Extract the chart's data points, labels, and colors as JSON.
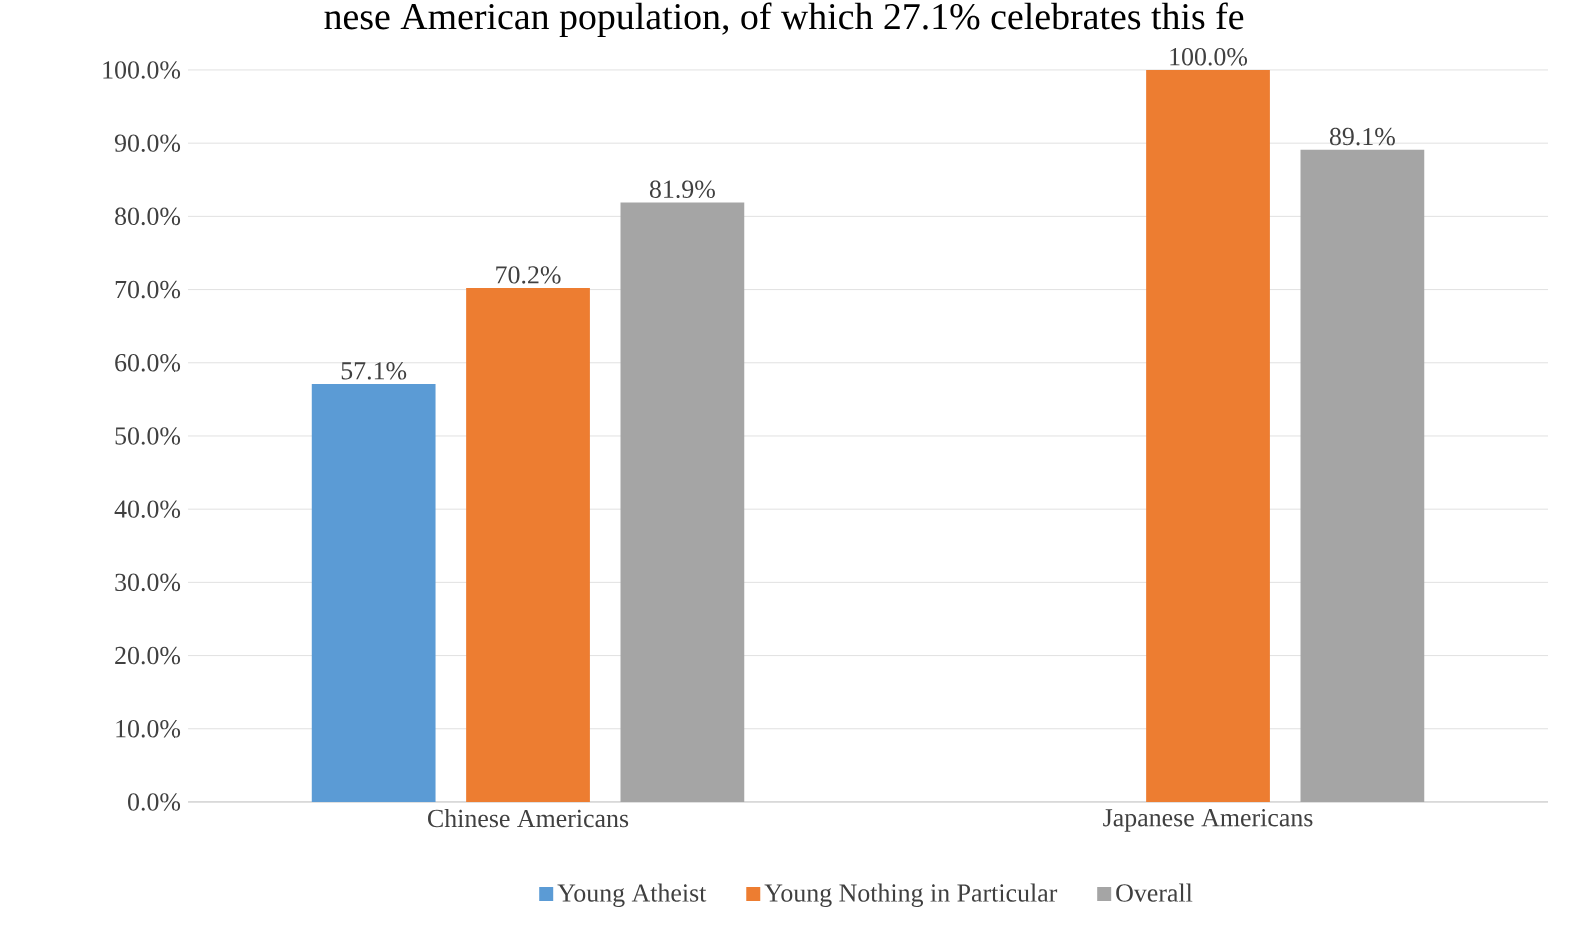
{
  "chart_data": {
    "type": "bar",
    "annotations": [
      "nese American population, of which 27.1% celebrates this fe"
    ],
    "categories": [
      "Chinese Americans",
      "Japanese Americans"
    ],
    "series": [
      {
        "name": "Young Atheist",
        "color": "#5b9bd5",
        "values": [
          57.1,
          null
        ],
        "value_labels": [
          "57.1%",
          null
        ]
      },
      {
        "name": "Young Nothing in Particular",
        "color": "#ed7d31",
        "values": [
          70.2,
          100.0
        ],
        "value_labels": [
          "70.2%",
          "100.0%"
        ]
      },
      {
        "name": "Overall",
        "color": "#a5a5a5",
        "values": [
          81.9,
          89.1
        ],
        "value_labels": [
          "81.9%",
          "89.1%"
        ]
      }
    ],
    "ylim": [
      0,
      100
    ],
    "yticks": [
      {
        "value": 0,
        "label": "0.0%"
      },
      {
        "value": 10,
        "label": "10.0%"
      },
      {
        "value": 20,
        "label": "20.0%"
      },
      {
        "value": 30,
        "label": "30.0%"
      },
      {
        "value": 40,
        "label": "40.0%"
      },
      {
        "value": 50,
        "label": "50.0%"
      },
      {
        "value": 60,
        "label": "60.0%"
      },
      {
        "value": 70,
        "label": "70.0%"
      },
      {
        "value": 80,
        "label": "80.0%"
      },
      {
        "value": 90,
        "label": "90.0%"
      },
      {
        "value": 100,
        "label": "100.0%"
      }
    ],
    "grid": "y",
    "legend": "bottom"
  }
}
